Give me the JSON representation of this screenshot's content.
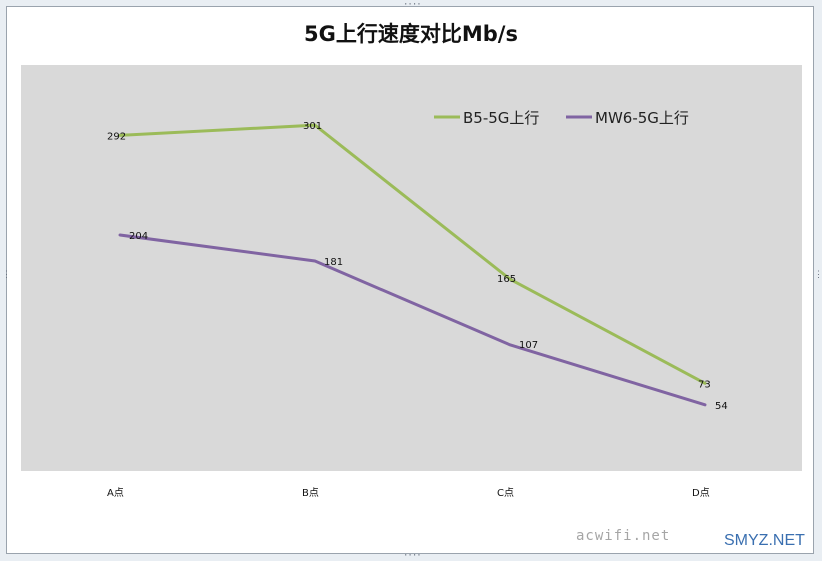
{
  "chart_data": {
    "type": "line",
    "title": "5G上行速度对比Mb/s",
    "categories": [
      "A点",
      "B点",
      "C点",
      "D点"
    ],
    "series": [
      {
        "name": "B5-5G上行",
        "values": [
          292,
          301,
          165,
          73
        ],
        "color": "#9bbb59"
      },
      {
        "name": "MW6-5G上行",
        "values": [
          204,
          181,
          107,
          54
        ],
        "color": "#8064a2"
      }
    ],
    "ylim": [
      0,
      340
    ],
    "xlabel": "",
    "ylabel": "",
    "grid": false,
    "plot_background": "#d9d9d9",
    "legend_position": "top-right",
    "data_labels": true
  },
  "watermarks": [
    "acwifi.net",
    "SMYZ.NET"
  ]
}
